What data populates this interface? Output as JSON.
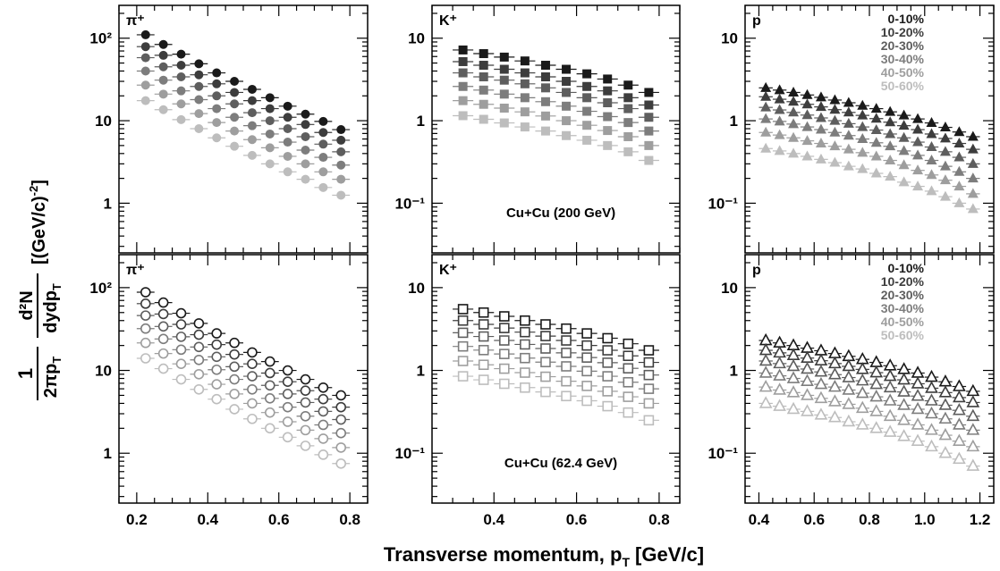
{
  "figure": {
    "ylabel_factor_num": "1",
    "ylabel_factor_den": "2πp",
    "ylabel_factor_den_sub": "T",
    "ylabel_frac_num": "d²N",
    "ylabel_frac_den": "dydp",
    "ylabel_frac_den_sub": "T",
    "ylabel_units": "[(GeV/c)",
    "ylabel_units_sup": "-2",
    "ylabel_units_end": "]",
    "xlabel_main": "Transverse momentum, p",
    "xlabel_sub": "T",
    "xlabel_units": "[GeV/c]"
  },
  "chart_data": [
    {
      "id": "pip_200",
      "type": "scatter",
      "particle": "π⁺",
      "system": "",
      "marker": "circle",
      "filled": true,
      "log_y": true,
      "xlim": [
        0.15,
        0.85
      ],
      "ylim": [
        0.25,
        250
      ],
      "xticks": [],
      "yticks": [
        {
          "v": 1,
          "t": "1"
        },
        {
          "v": 10,
          "t": "10"
        },
        {
          "v": 100,
          "t": "10²"
        }
      ],
      "x": [
        0.225,
        0.275,
        0.325,
        0.375,
        0.425,
        0.475,
        0.525,
        0.575,
        0.625,
        0.675,
        0.725,
        0.775
      ],
      "series": [
        {
          "name": "0-10%",
          "color": "#1a1a1a",
          "values": [
            110,
            84,
            64,
            49,
            38,
            30,
            24,
            19,
            15,
            12,
            9.8,
            7.8
          ]
        },
        {
          "name": "10-20%",
          "color": "#3d3d3d",
          "values": [
            79,
            62,
            47,
            36,
            28,
            22,
            17.5,
            14,
            11,
            9,
            7.2,
            5.8
          ]
        },
        {
          "name": "20-30%",
          "color": "#5e5e5e",
          "values": [
            58,
            45,
            34,
            26,
            20,
            16,
            12.5,
            10,
            8,
            6.4,
            5.2,
            4.2
          ]
        },
        {
          "name": "30-40%",
          "color": "#7d7d7d",
          "values": [
            40,
            31,
            23,
            18,
            14,
            11,
            8.7,
            6.9,
            5.5,
            4.4,
            3.6,
            2.9
          ]
        },
        {
          "name": "40-50%",
          "color": "#9e9e9e",
          "values": [
            27,
            21,
            16,
            12.2,
            9.5,
            7.5,
            5.9,
            4.7,
            3.7,
            3,
            2.4,
            1.95
          ]
        },
        {
          "name": "50-60%",
          "color": "#bdbdbd",
          "values": [
            17.5,
            13.6,
            10.3,
            8,
            6.2,
            4.9,
            3.8,
            3,
            2.4,
            1.95,
            1.55,
            1.25
          ]
        }
      ]
    },
    {
      "id": "kp_200",
      "type": "scatter",
      "particle": "K⁺",
      "system": "Cu+Cu (200 GeV)",
      "marker": "square",
      "filled": true,
      "log_y": true,
      "xlim": [
        0.25,
        0.85
      ],
      "ylim": [
        0.025,
        25
      ],
      "xticks": [],
      "yticks": [
        {
          "v": 0.1,
          "t": "10⁻¹"
        },
        {
          "v": 1,
          "t": "1"
        },
        {
          "v": 10,
          "t": "10"
        }
      ],
      "x": [
        0.325,
        0.375,
        0.425,
        0.475,
        0.525,
        0.575,
        0.625,
        0.675,
        0.725,
        0.775
      ],
      "series": [
        {
          "name": "0-10%",
          "color": "#1a1a1a",
          "values": [
            7.2,
            6.5,
            5.9,
            5.3,
            4.7,
            4.2,
            3.7,
            3.2,
            2.7,
            2.2
          ]
        },
        {
          "name": "10-20%",
          "color": "#3d3d3d",
          "values": [
            5.2,
            4.7,
            4.2,
            3.8,
            3.4,
            3.0,
            2.6,
            2.3,
            1.9,
            1.55
          ]
        },
        {
          "name": "20-30%",
          "color": "#5e5e5e",
          "values": [
            3.8,
            3.4,
            3.1,
            2.8,
            2.5,
            2.2,
            1.9,
            1.65,
            1.4,
            1.1
          ]
        },
        {
          "name": "30-40%",
          "color": "#7d7d7d",
          "values": [
            2.6,
            2.35,
            2.1,
            1.9,
            1.7,
            1.5,
            1.3,
            1.12,
            0.95,
            0.75
          ]
        },
        {
          "name": "40-50%",
          "color": "#9e9e9e",
          "values": [
            1.75,
            1.58,
            1.42,
            1.28,
            1.14,
            1.0,
            0.88,
            0.76,
            0.64,
            0.5
          ]
        },
        {
          "name": "50-60%",
          "color": "#bdbdbd",
          "values": [
            1.15,
            1.04,
            0.94,
            0.84,
            0.75,
            0.66,
            0.58,
            0.5,
            0.42,
            0.33
          ]
        }
      ]
    },
    {
      "id": "p_200",
      "type": "scatter",
      "particle": "p",
      "system": "",
      "marker": "triangle",
      "filled": true,
      "log_y": true,
      "xlim": [
        0.35,
        1.25
      ],
      "ylim": [
        0.025,
        25
      ],
      "xticks": [],
      "yticks": [
        {
          "v": 0.1,
          "t": "10⁻¹"
        },
        {
          "v": 1,
          "t": "1"
        },
        {
          "v": 10,
          "t": "10"
        }
      ],
      "legend": [
        "0-10%",
        "10-20%",
        "20-30%",
        "30-40%",
        "40-50%",
        "50-60%"
      ],
      "x": [
        0.425,
        0.475,
        0.525,
        0.575,
        0.625,
        0.675,
        0.725,
        0.775,
        0.825,
        0.875,
        0.925,
        0.975,
        1.025,
        1.075,
        1.125,
        1.175
      ],
      "series": [
        {
          "name": "0-10%",
          "color": "#1a1a1a",
          "values": [
            2.5,
            2.35,
            2.2,
            2.05,
            1.92,
            1.78,
            1.65,
            1.52,
            1.4,
            1.28,
            1.16,
            1.05,
            0.94,
            0.83,
            0.73,
            0.64
          ]
        },
        {
          "name": "10-20%",
          "color": "#3d3d3d",
          "values": [
            1.95,
            1.82,
            1.7,
            1.58,
            1.47,
            1.36,
            1.26,
            1.16,
            1.06,
            0.96,
            0.87,
            0.78,
            0.69,
            0.61,
            0.53,
            0.45
          ]
        },
        {
          "name": "20-30%",
          "color": "#5e5e5e",
          "values": [
            1.45,
            1.35,
            1.26,
            1.17,
            1.08,
            1.0,
            0.92,
            0.84,
            0.77,
            0.69,
            0.62,
            0.55,
            0.48,
            0.42,
            0.36,
            0.3
          ]
        },
        {
          "name": "30-40%",
          "color": "#7d7d7d",
          "values": [
            1.05,
            0.98,
            0.91,
            0.84,
            0.78,
            0.72,
            0.66,
            0.6,
            0.54,
            0.49,
            0.43,
            0.38,
            0.33,
            0.28,
            0.24,
            0.2
          ]
        },
        {
          "name": "40-50%",
          "color": "#9e9e9e",
          "values": [
            0.72,
            0.67,
            0.62,
            0.57,
            0.53,
            0.49,
            0.45,
            0.41,
            0.37,
            0.33,
            0.29,
            0.25,
            0.22,
            0.19,
            0.16,
            0.13
          ]
        },
        {
          "name": "50-60%",
          "color": "#bdbdbd",
          "values": [
            0.46,
            0.43,
            0.4,
            0.37,
            0.34,
            0.31,
            0.28,
            0.26,
            0.23,
            0.21,
            0.18,
            0.16,
            0.14,
            0.12,
            0.1,
            0.085
          ]
        }
      ]
    },
    {
      "id": "pip_62",
      "type": "scatter",
      "particle": "π⁺",
      "system": "",
      "marker": "circle",
      "filled": false,
      "log_y": true,
      "xlim": [
        0.15,
        0.85
      ],
      "ylim": [
        0.25,
        250
      ],
      "xticks": [
        {
          "v": 0.2,
          "t": "0.2"
        },
        {
          "v": 0.4,
          "t": "0.4"
        },
        {
          "v": 0.6,
          "t": "0.6"
        },
        {
          "v": 0.8,
          "t": "0.8"
        }
      ],
      "yticks": [
        {
          "v": 1,
          "t": "1"
        },
        {
          "v": 10,
          "t": "10"
        },
        {
          "v": 100,
          "t": "10²"
        }
      ],
      "x": [
        0.225,
        0.275,
        0.325,
        0.375,
        0.425,
        0.475,
        0.525,
        0.575,
        0.625,
        0.675,
        0.725,
        0.775
      ],
      "series": [
        {
          "name": "0-10%",
          "color": "#1a1a1a",
          "values": [
            88,
            66,
            49,
            37,
            28,
            21.5,
            16.5,
            12.8,
            10,
            7.8,
            6.2,
            5
          ]
        },
        {
          "name": "10-20%",
          "color": "#3d3d3d",
          "values": [
            64,
            48,
            36,
            27,
            20.5,
            15.6,
            12,
            9.3,
            7.3,
            5.7,
            4.5,
            3.6
          ]
        },
        {
          "name": "20-30%",
          "color": "#5e5e5e",
          "values": [
            46,
            34,
            25.5,
            19.2,
            14.6,
            11.1,
            8.5,
            6.6,
            5.2,
            4.1,
            3.2,
            2.55
          ]
        },
        {
          "name": "30-40%",
          "color": "#7d7d7d",
          "values": [
            32,
            24,
            17.8,
            13.4,
            10.2,
            7.8,
            5.9,
            4.6,
            3.6,
            2.8,
            2.2,
            1.75
          ]
        },
        {
          "name": "40-50%",
          "color": "#9e9e9e",
          "values": [
            21.5,
            16,
            12,
            9,
            6.8,
            5.2,
            4,
            3.1,
            2.4,
            1.9,
            1.5,
            1.17
          ]
        },
        {
          "name": "50-60%",
          "color": "#bdbdbd",
          "values": [
            14,
            10.5,
            7.8,
            5.9,
            4.5,
            3.4,
            2.6,
            2,
            1.56,
            1.23,
            0.96,
            0.75
          ]
        }
      ]
    },
    {
      "id": "kp_62",
      "type": "scatter",
      "particle": "K⁺",
      "system": "Cu+Cu (62.4 GeV)",
      "marker": "square",
      "filled": false,
      "log_y": true,
      "xlim": [
        0.25,
        0.85
      ],
      "ylim": [
        0.025,
        25
      ],
      "xticks": [
        {
          "v": 0.4,
          "t": "0.4"
        },
        {
          "v": 0.6,
          "t": "0.6"
        },
        {
          "v": 0.8,
          "t": "0.8"
        }
      ],
      "yticks": [
        {
          "v": 0.1,
          "t": "10⁻¹"
        },
        {
          "v": 1,
          "t": "1"
        },
        {
          "v": 10,
          "t": "10"
        }
      ],
      "x": [
        0.325,
        0.375,
        0.425,
        0.475,
        0.525,
        0.575,
        0.625,
        0.675,
        0.725,
        0.775
      ],
      "series": [
        {
          "name": "0-10%",
          "color": "#1a1a1a",
          "values": [
            5.5,
            5.0,
            4.5,
            4.0,
            3.6,
            3.2,
            2.8,
            2.45,
            2.1,
            1.75
          ]
        },
        {
          "name": "10-20%",
          "color": "#3d3d3d",
          "values": [
            4.0,
            3.6,
            3.25,
            2.9,
            2.6,
            2.3,
            2.0,
            1.75,
            1.5,
            1.25
          ]
        },
        {
          "name": "20-30%",
          "color": "#5e5e5e",
          "values": [
            2.85,
            2.57,
            2.3,
            2.06,
            1.84,
            1.63,
            1.43,
            1.24,
            1.06,
            0.88
          ]
        },
        {
          "name": "30-40%",
          "color": "#7d7d7d",
          "values": [
            1.95,
            1.76,
            1.58,
            1.41,
            1.26,
            1.12,
            0.98,
            0.85,
            0.72,
            0.6
          ]
        },
        {
          "name": "40-50%",
          "color": "#9e9e9e",
          "values": [
            1.3,
            1.17,
            1.05,
            0.94,
            0.84,
            0.74,
            0.65,
            0.56,
            0.48,
            0.4
          ]
        },
        {
          "name": "50-60%",
          "color": "#bdbdbd",
          "values": [
            0.85,
            0.77,
            0.69,
            0.62,
            0.55,
            0.49,
            0.43,
            0.37,
            0.31,
            0.25
          ]
        }
      ]
    },
    {
      "id": "p_62",
      "type": "scatter",
      "particle": "p",
      "system": "",
      "marker": "triangle",
      "filled": false,
      "log_y": true,
      "xlim": [
        0.35,
        1.25
      ],
      "ylim": [
        0.025,
        25
      ],
      "xticks": [
        {
          "v": 0.4,
          "t": "0.4"
        },
        {
          "v": 0.6,
          "t": "0.6"
        },
        {
          "v": 0.8,
          "t": "0.8"
        },
        {
          "v": 1.0,
          "t": "1.0"
        },
        {
          "v": 1.2,
          "t": "1.2"
        }
      ],
      "yticks": [
        {
          "v": 0.1,
          "t": "10⁻¹"
        },
        {
          "v": 1,
          "t": "1"
        },
        {
          "v": 10,
          "t": "10"
        }
      ],
      "legend": [
        "0-10%",
        "10-20%",
        "20-30%",
        "30-40%",
        "40-50%",
        "50-60%"
      ],
      "x": [
        0.425,
        0.475,
        0.525,
        0.575,
        0.625,
        0.675,
        0.725,
        0.775,
        0.825,
        0.875,
        0.925,
        0.975,
        1.025,
        1.075,
        1.125,
        1.175
      ],
      "series": [
        {
          "name": "0-10%",
          "color": "#1a1a1a",
          "values": [
            2.3,
            2.15,
            2.0,
            1.86,
            1.73,
            1.6,
            1.48,
            1.36,
            1.25,
            1.14,
            1.03,
            0.93,
            0.83,
            0.73,
            0.64,
            0.56
          ]
        },
        {
          "name": "10-20%",
          "color": "#3d3d3d",
          "values": [
            1.75,
            1.63,
            1.52,
            1.41,
            1.31,
            1.21,
            1.12,
            1.03,
            0.94,
            0.85,
            0.77,
            0.69,
            0.61,
            0.54,
            0.47,
            0.41
          ]
        },
        {
          "name": "20-30%",
          "color": "#5e5e5e",
          "values": [
            1.3,
            1.21,
            1.12,
            1.04,
            0.96,
            0.89,
            0.82,
            0.75,
            0.68,
            0.62,
            0.55,
            0.49,
            0.43,
            0.38,
            0.33,
            0.28
          ]
        },
        {
          "name": "30-40%",
          "color": "#7d7d7d",
          "values": [
            0.93,
            0.86,
            0.8,
            0.74,
            0.68,
            0.63,
            0.58,
            0.53,
            0.48,
            0.43,
            0.38,
            0.34,
            0.3,
            0.26,
            0.22,
            0.19
          ]
        },
        {
          "name": "40-50%",
          "color": "#9e9e9e",
          "values": [
            0.63,
            0.58,
            0.54,
            0.5,
            0.46,
            0.42,
            0.39,
            0.35,
            0.32,
            0.28,
            0.25,
            0.22,
            0.19,
            0.165,
            0.14,
            0.12
          ]
        },
        {
          "name": "50-60%",
          "color": "#bdbdbd",
          "values": [
            0.4,
            0.37,
            0.34,
            0.32,
            0.29,
            0.27,
            0.24,
            0.22,
            0.2,
            0.18,
            0.16,
            0.14,
            0.12,
            0.1,
            0.085,
            0.07
          ]
        }
      ]
    }
  ]
}
